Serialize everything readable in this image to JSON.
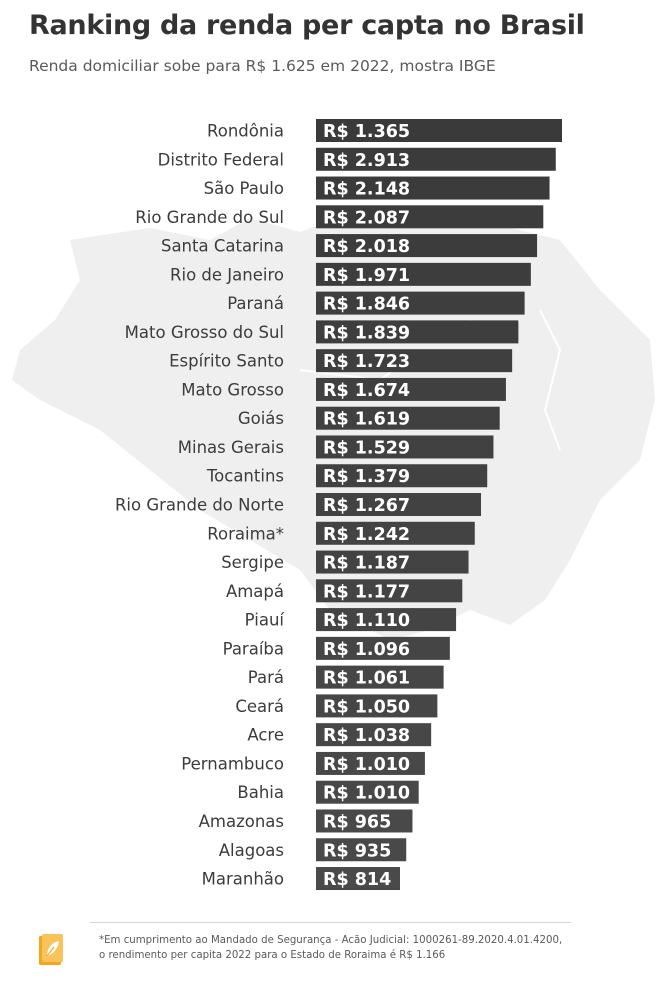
{
  "header": {
    "title": "Ranking da renda per capta no Brasil",
    "subtitle": "Renda domiciliar sobe para R$ 1.625 em 2022, mostra IBGE"
  },
  "colors": {
    "bar_top": "#3a3a3a",
    "bar_bottom": "#4a4a4a",
    "map": "#efefef",
    "accent": "#f2a81d"
  },
  "chart_data": {
    "type": "bar",
    "orientation": "horizontal",
    "title": "",
    "xlabel": "",
    "ylabel": "",
    "categories": [
      "Rondônia",
      "Distrito Federal",
      "São Paulo",
      "Rio Grande do Sul",
      "Santa Catarina",
      "Rio de Janeiro",
      "Paraná",
      "Mato Grosso do Sul",
      "Espírito Santo",
      "Mato Grosso",
      "Goiás",
      "Minas Gerais",
      "Tocantins",
      "Rio Grande do Norte",
      "Roraima*",
      "Sergipe",
      "Amapá",
      "Piauí",
      "Paraíba",
      "Pará",
      "Ceará",
      "Acre",
      "Pernambuco",
      "Bahia",
      "Amazonas",
      "Alagoas",
      "Maranhão"
    ],
    "values": [
      1365,
      2913,
      2148,
      2087,
      2018,
      1971,
      1846,
      1839,
      1723,
      1674,
      1619,
      1529,
      1379,
      1267,
      1242,
      1187,
      1177,
      1110,
      1096,
      1061,
      1050,
      1038,
      1010,
      1010,
      965,
      935,
      814
    ],
    "value_labels": [
      "R$ 1.365",
      "R$ 2.913",
      "R$ 2.148",
      "R$ 2.087",
      "R$ 2.018",
      "R$ 1.971",
      "R$ 1.846",
      "R$ 1.839",
      "R$ 1.723",
      "R$ 1.674",
      "R$ 1.619",
      "R$ 1.529",
      "R$ 1.379",
      "R$ 1.267",
      "R$ 1.242",
      "R$ 1.187",
      "R$ 1.177",
      "R$ 1.110",
      "R$ 1.096",
      "R$ 1.061",
      "R$ 1.050",
      "R$ 1.038",
      "R$ 1.010",
      "R$ 1.010",
      "R$ 965",
      "R$ 935",
      "R$ 814"
    ],
    "bar_lengths_note": "ranked funnel: bar length follows ranking position, not value scale"
  },
  "footnote": {
    "line1": "*Em cumprimento ao Mandado de Segurança - Acão Judicial: 1000261-89.2020.4.01.4200,",
    "line2": "o rendimento per capita 2022 para o Estado de Roraima é R$ 1.166"
  },
  "logo": {
    "icon": "leaf-book-icon"
  }
}
